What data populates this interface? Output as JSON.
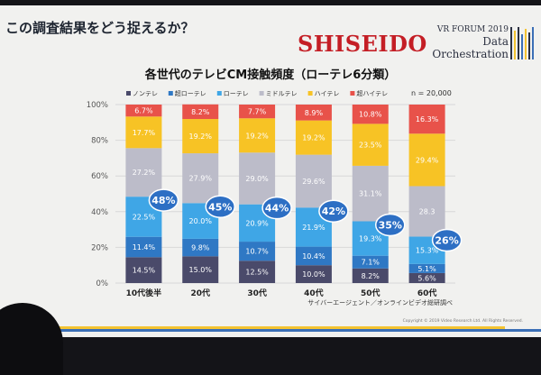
{
  "slide": {
    "title": "この調査結果をどう捉えるか？",
    "logo": "SHISEIDO",
    "forum": {
      "line1": "VR FORUM 2019",
      "line2": "Data",
      "line3": "Orchestration"
    }
  },
  "chart_data": {
    "type": "bar",
    "stacked": true,
    "percent": true,
    "title": "各世代のテレビCM接触頻度（ローテレ6分類）",
    "n_label": "n = 20,000",
    "categories": [
      "10代後半",
      "20代",
      "30代",
      "40代",
      "50代",
      "60代"
    ],
    "series": [
      {
        "name": "ノンテレ",
        "color": "#4a4a6a",
        "values": [
          14.5,
          15.0,
          12.5,
          10.0,
          8.2,
          5.6
        ]
      },
      {
        "name": "超ローテレ",
        "color": "#2f78c4",
        "values": [
          11.4,
          9.8,
          10.7,
          10.4,
          7.1,
          5.1
        ]
      },
      {
        "name": "ローテレ",
        "color": "#3fa6e6",
        "values": [
          22.5,
          20.0,
          20.9,
          21.9,
          19.3,
          15.3
        ]
      },
      {
        "name": "ミドルテレ",
        "color": "#bcbcc9",
        "values": [
          27.2,
          27.9,
          29.0,
          29.6,
          31.1,
          28.3
        ]
      },
      {
        "name": "ハイテレ",
        "color": "#f7c325",
        "values": [
          17.7,
          19.2,
          19.2,
          19.2,
          23.5,
          29.4
        ]
      },
      {
        "name": "超ハイテレ",
        "color": "#e8524a",
        "values": [
          6.7,
          8.2,
          7.7,
          8.9,
          10.8,
          16.3
        ]
      }
    ],
    "value_labels": [
      [
        "14.5%",
        "11.4%",
        "22.5%",
        "27.2%",
        "17.7%",
        "6.7%"
      ],
      [
        "15.0%",
        "9.8%",
        "20.0%",
        "27.9%",
        "19.2%",
        "8.2%"
      ],
      [
        "12.5%",
        "10.7%",
        "20.9%",
        "29.0%",
        "19.2%",
        "7.7%"
      ],
      [
        "10.0%",
        "10.4%",
        "21.9%",
        "29.6%",
        "19.2%",
        "8.9%"
      ],
      [
        "8.2%",
        "7.1%",
        "19.3%",
        "31.1%",
        "23.5%",
        "10.8%"
      ],
      [
        "5.6%",
        "5.1%",
        "15.3%",
        "28.3",
        "29.4%",
        "16.3%"
      ]
    ],
    "callouts": [
      "48%",
      "45%",
      "44%",
      "42%",
      "35%",
      "26%"
    ],
    "y_ticks": [
      "0%",
      "20%",
      "40%",
      "60%",
      "80%",
      "100%"
    ],
    "ylim": [
      0,
      100
    ],
    "grid": true,
    "legend_position": "top",
    "source": "サイバーエージェント／オンラインビデオ総研調べ",
    "copyright": "Copyright © 2019 Video Research Ltd. All Rights Reserved."
  }
}
